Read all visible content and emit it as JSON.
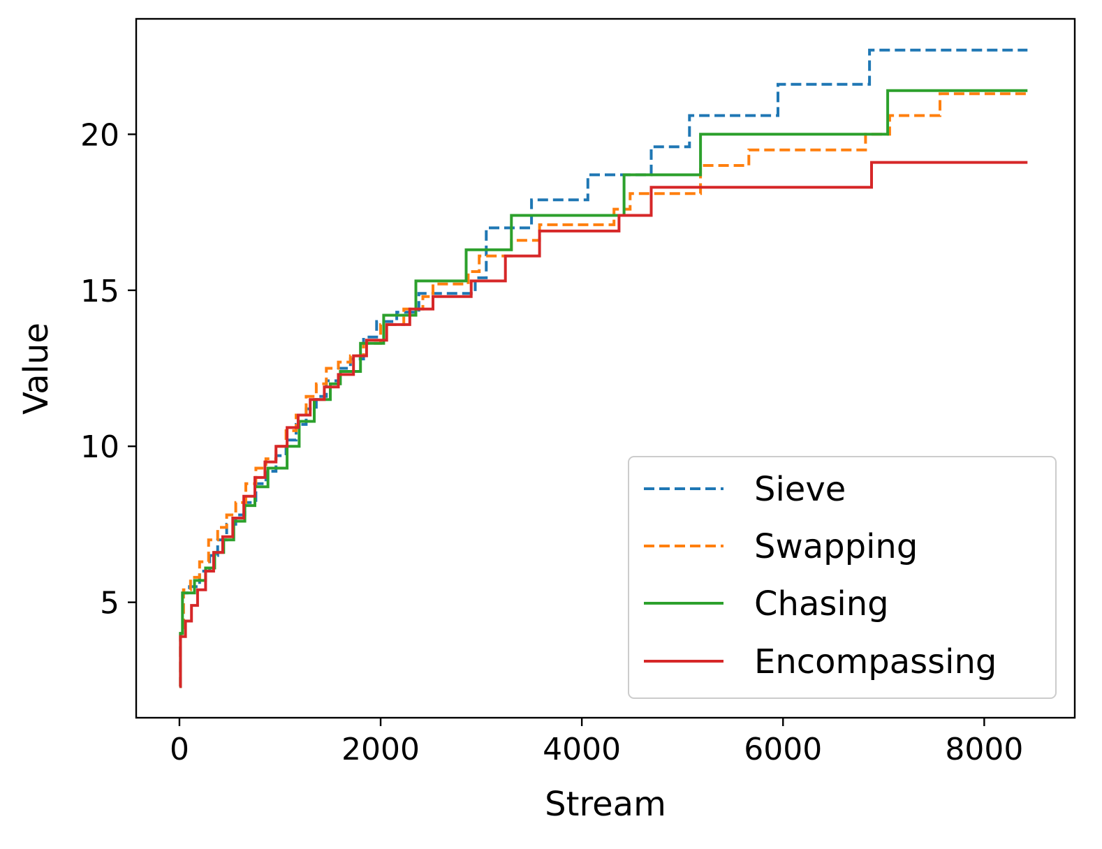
{
  "chart_data": {
    "type": "line",
    "step": true,
    "title": "",
    "xlabel": "Stream",
    "ylabel": "Value",
    "xlim": [
      -430,
      8900
    ],
    "ylim": [
      1.3,
      23.7
    ],
    "xticks": [
      0,
      2000,
      4000,
      6000,
      8000
    ],
    "yticks": [
      5,
      10,
      15,
      20
    ],
    "legend_position": "lower-right",
    "series": [
      {
        "name": "Sieve",
        "color": "#1f77b4",
        "style": "dashed",
        "x": [
          0,
          10,
          40,
          100,
          200,
          300,
          380,
          470,
          560,
          650,
          760,
          860,
          960,
          1060,
          1160,
          1260,
          1360,
          1460,
          1580,
          1700,
          1830,
          1960,
          2160,
          2380,
          2940,
          3050,
          3500,
          4060,
          4690,
          5070,
          5950,
          6860,
          8430
        ],
        "y": [
          2.3,
          4.0,
          5.3,
          5.5,
          6.0,
          6.5,
          7.0,
          7.5,
          7.8,
          8.2,
          8.8,
          9.2,
          9.7,
          10.2,
          10.7,
          11.2,
          11.6,
          12.1,
          12.5,
          12.8,
          13.5,
          14.0,
          14.3,
          14.9,
          15.4,
          17.0,
          17.9,
          18.7,
          19.6,
          20.6,
          21.6,
          22.7,
          22.7
        ]
      },
      {
        "name": "Swapping",
        "color": "#ff7f0e",
        "style": "dashed",
        "x": [
          0,
          10,
          40,
          110,
          200,
          290,
          380,
          470,
          560,
          660,
          760,
          860,
          960,
          1060,
          1160,
          1260,
          1360,
          1460,
          1580,
          1700,
          1830,
          2000,
          2230,
          2420,
          2520,
          2870,
          2980,
          3300,
          3580,
          4320,
          4480,
          5180,
          5660,
          6820,
          7060,
          7560,
          8430
        ],
        "y": [
          2.3,
          4.0,
          5.4,
          5.8,
          6.3,
          7.0,
          7.4,
          7.8,
          8.2,
          8.8,
          9.3,
          9.6,
          10.0,
          10.5,
          11.0,
          11.6,
          12.0,
          12.5,
          12.7,
          12.9,
          13.3,
          13.9,
          14.4,
          14.8,
          15.2,
          15.6,
          16.1,
          16.6,
          17.1,
          17.6,
          18.1,
          19.0,
          19.5,
          20.0,
          20.6,
          21.3,
          21.3
        ]
      },
      {
        "name": "Chasing",
        "color": "#2ca02c",
        "style": "solid",
        "x": [
          0,
          10,
          30,
          150,
          260,
          350,
          440,
          540,
          650,
          750,
          880,
          1070,
          1190,
          1340,
          1500,
          1600,
          1800,
          2030,
          2350,
          2850,
          2860,
          3300,
          4420,
          5180,
          7040,
          8430
        ],
        "y": [
          2.3,
          4.0,
          5.3,
          5.7,
          6.1,
          6.6,
          7.0,
          7.6,
          8.1,
          8.7,
          9.3,
          10.0,
          10.8,
          11.5,
          12.0,
          12.4,
          13.3,
          14.2,
          15.3,
          16.3,
          16.3,
          17.4,
          18.7,
          20.0,
          21.4,
          21.4
        ]
      },
      {
        "name": "Encompassing",
        "color": "#d62728",
        "style": "solid",
        "x": [
          0,
          10,
          60,
          120,
          180,
          260,
          340,
          430,
          530,
          640,
          750,
          850,
          960,
          1070,
          1180,
          1300,
          1440,
          1580,
          1730,
          1860,
          2060,
          2290,
          2520,
          2900,
          3240,
          3580,
          4370,
          4690,
          6880,
          8430
        ],
        "y": [
          2.3,
          3.9,
          4.4,
          4.9,
          5.4,
          6.0,
          6.6,
          7.1,
          7.7,
          8.4,
          9.0,
          9.5,
          10.0,
          10.6,
          11.0,
          11.5,
          11.9,
          12.3,
          12.9,
          13.4,
          13.9,
          14.4,
          14.8,
          15.3,
          16.1,
          16.9,
          17.4,
          18.3,
          19.1,
          19.1
        ]
      }
    ]
  }
}
